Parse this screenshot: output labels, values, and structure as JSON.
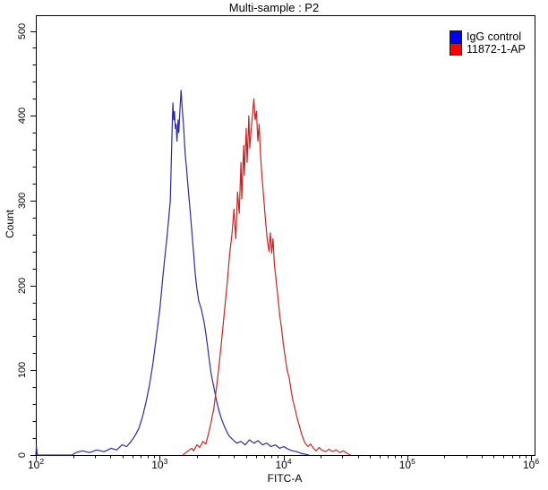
{
  "window": {
    "title": "Multi-sample : P2"
  },
  "chart_data": {
    "type": "line",
    "subtype": "flow-cytometry-histogram",
    "title": "Multi-sample : P2",
    "xlabel": "FITC-A",
    "ylabel": "Count",
    "x_scale": "log10",
    "xlim": [
      100,
      1000000
    ],
    "ylim": [
      0,
      500
    ],
    "x_major_ticks": [
      100,
      1000,
      10000,
      100000,
      1000000
    ],
    "x_minor_multiples": [
      2,
      3,
      4,
      5,
      6,
      7,
      8,
      9
    ],
    "y_major_ticks": [
      500,
      400,
      300,
      200,
      100,
      0
    ],
    "y_minor_step": 20,
    "grid": false,
    "legend_position": "top-right",
    "axis_color": "#000000",
    "background_color": "#ffffff",
    "series": [
      {
        "name": "IgG control",
        "color": "#2a2aa8",
        "legend_color": "#0000ff",
        "peak_fitc": 1490,
        "peak_count": 430,
        "points": [
          [
            100,
            0
          ],
          [
            101,
            10
          ],
          [
            103,
            0
          ],
          [
            196,
            0
          ],
          [
            211,
            3
          ],
          [
            238,
            5
          ],
          [
            272,
            3
          ],
          [
            311,
            6
          ],
          [
            356,
            4
          ],
          [
            407,
            8
          ],
          [
            449,
            6
          ],
          [
            497,
            12
          ],
          [
            541,
            10
          ],
          [
            588,
            16
          ],
          [
            639,
            24
          ],
          [
            682,
            32
          ],
          [
            727,
            45
          ],
          [
            776,
            62
          ],
          [
            828,
            82
          ],
          [
            884,
            108
          ],
          [
            943,
            140
          ],
          [
            1010,
            175
          ],
          [
            1070,
            215
          ],
          [
            1150,
            258
          ],
          [
            1220,
            300
          ],
          [
            1260,
            380
          ],
          [
            1280,
            415
          ],
          [
            1300,
            395
          ],
          [
            1320,
            405
          ],
          [
            1340,
            385
          ],
          [
            1360,
            390
          ],
          [
            1380,
            370
          ],
          [
            1410,
            395
          ],
          [
            1430,
            380
          ],
          [
            1450,
            400
          ],
          [
            1470,
            415
          ],
          [
            1490,
            430
          ],
          [
            1520,
            410
          ],
          [
            1560,
            390
          ],
          [
            1610,
            355
          ],
          [
            1650,
            338
          ],
          [
            1700,
            315
          ],
          [
            1760,
            290
          ],
          [
            1820,
            264
          ],
          [
            1880,
            238
          ],
          [
            1940,
            214
          ],
          [
            2000,
            196
          ],
          [
            2070,
            182
          ],
          [
            2170,
            172
          ],
          [
            2280,
            158
          ],
          [
            2360,
            144
          ],
          [
            2440,
            128
          ],
          [
            2520,
            112
          ],
          [
            2600,
            97
          ],
          [
            2740,
            80
          ],
          [
            2870,
            65
          ],
          [
            3020,
            52
          ],
          [
            3170,
            42
          ],
          [
            3330,
            34
          ],
          [
            3500,
            27
          ],
          [
            3670,
            22
          ],
          [
            3920,
            18
          ],
          [
            4190,
            14
          ],
          [
            4540,
            16
          ],
          [
            4910,
            12
          ],
          [
            5320,
            18
          ],
          [
            5770,
            14
          ],
          [
            6250,
            17
          ],
          [
            6770,
            12
          ],
          [
            7330,
            14
          ],
          [
            7940,
            10
          ],
          [
            8600,
            12
          ],
          [
            9320,
            8
          ],
          [
            10100,
            10
          ],
          [
            10900,
            7
          ],
          [
            11900,
            5
          ],
          [
            12800,
            4
          ],
          [
            13900,
            2
          ],
          [
            15100,
            1
          ],
          [
            16100,
            0
          ]
        ]
      },
      {
        "name": "11872-1-AP",
        "color": "#c62626",
        "legend_color": "#ff0000",
        "peak_fitc": 5770,
        "peak_count": 420,
        "points": [
          [
            1540,
            0
          ],
          [
            1670,
            4
          ],
          [
            1820,
            8
          ],
          [
            1880,
            5
          ],
          [
            2000,
            12
          ],
          [
            2110,
            9
          ],
          [
            2240,
            16
          ],
          [
            2360,
            13
          ],
          [
            2480,
            25
          ],
          [
            2600,
            38
          ],
          [
            2740,
            55
          ],
          [
            2870,
            78
          ],
          [
            3020,
            105
          ],
          [
            3170,
            135
          ],
          [
            3330,
            168
          ],
          [
            3500,
            200
          ],
          [
            3670,
            235
          ],
          [
            3860,
            263
          ],
          [
            3990,
            290
          ],
          [
            4120,
            255
          ],
          [
            4260,
            310
          ],
          [
            4400,
            285
          ],
          [
            4540,
            345
          ],
          [
            4610,
            302
          ],
          [
            4770,
            365
          ],
          [
            4840,
            330
          ],
          [
            5010,
            385
          ],
          [
            5090,
            345
          ],
          [
            5260,
            400
          ],
          [
            5350,
            362
          ],
          [
            5770,
            420
          ],
          [
            5920,
            395
          ],
          [
            6060,
            405
          ],
          [
            6220,
            370
          ],
          [
            6370,
            390
          ],
          [
            6530,
            355
          ],
          [
            6690,
            330
          ],
          [
            6920,
            305
          ],
          [
            7150,
            278
          ],
          [
            7400,
            255
          ],
          [
            7650,
            240
          ],
          [
            7840,
            262
          ],
          [
            8040,
            238
          ],
          [
            8240,
            255
          ],
          [
            8450,
            225
          ],
          [
            8750,
            205
          ],
          [
            9050,
            185
          ],
          [
            9370,
            163
          ],
          [
            9690,
            148
          ],
          [
            10000,
            130
          ],
          [
            10400,
            113
          ],
          [
            10700,
            100
          ],
          [
            11100,
            92
          ],
          [
            11500,
            78
          ],
          [
            11900,
            65
          ],
          [
            12300,
            57
          ],
          [
            12700,
            48
          ],
          [
            13100,
            40
          ],
          [
            13600,
            32
          ],
          [
            14000,
            25
          ],
          [
            14500,
            19
          ],
          [
            15000,
            14
          ],
          [
            15800,
            10
          ],
          [
            16600,
            13
          ],
          [
            17500,
            8
          ],
          [
            18400,
            5
          ],
          [
            19400,
            9
          ],
          [
            20400,
            6
          ],
          [
            21900,
            4
          ],
          [
            23400,
            7
          ],
          [
            24900,
            4
          ],
          [
            26700,
            6
          ],
          [
            28500,
            3
          ],
          [
            30500,
            5
          ],
          [
            32600,
            2
          ],
          [
            34900,
            0
          ]
        ]
      }
    ]
  }
}
